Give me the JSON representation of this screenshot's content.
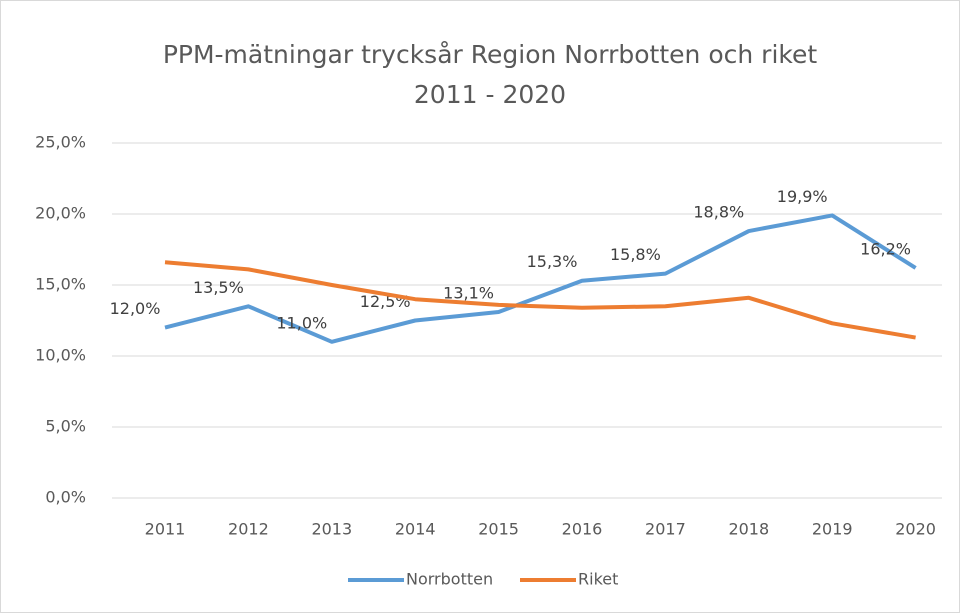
{
  "chart_data": {
    "type": "line",
    "title": "PPM-mätningar trycksår Region Norrbotten och riket",
    "subtitle": "2011 - 2020",
    "categories": [
      "2011",
      "2012",
      "2013",
      "2014",
      "2015",
      "2016",
      "2017",
      "2018",
      "2019",
      "2020"
    ],
    "series": [
      {
        "name": "Norrbotten",
        "color": "#5b9bd5",
        "values": [
          12.0,
          13.5,
          11.0,
          12.5,
          13.1,
          15.3,
          15.8,
          18.8,
          19.9,
          16.2
        ],
        "value_labels": [
          "12,0%",
          "13,5%",
          "11,0%",
          "12,5%",
          "13,1%",
          "15,3%",
          "15,8%",
          "18,8%",
          "19,9%",
          "16,2%"
        ]
      },
      {
        "name": "Riket",
        "color": "#ed7d31",
        "values": [
          16.6,
          16.1,
          15.0,
          14.0,
          13.6,
          13.4,
          13.5,
          14.1,
          12.3,
          11.3
        ]
      }
    ],
    "ylim": [
      0,
      25
    ],
    "yticks": [
      {
        "value": 0,
        "label": "0,0%"
      },
      {
        "value": 5,
        "label": "5,0%"
      },
      {
        "value": 10,
        "label": "10,0%"
      },
      {
        "value": 15,
        "label": "15,0%"
      },
      {
        "value": 20,
        "label": "20,0%"
      },
      {
        "value": 25,
        "label": "25,0%"
      }
    ],
    "grid": true,
    "legend": "bottom"
  }
}
